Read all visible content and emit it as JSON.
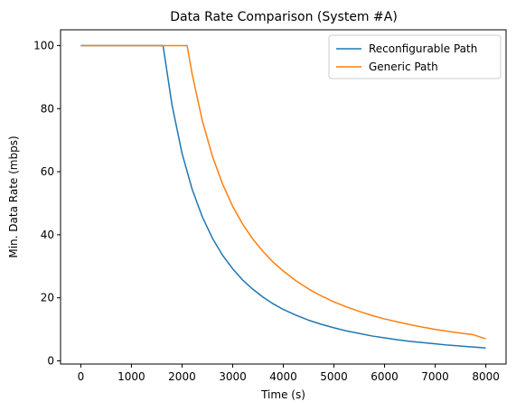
{
  "chart_data": {
    "type": "line",
    "title": "Data Rate Comparison (System #A)",
    "xlabel": "Time (s)",
    "ylabel": "Min. Data Rate (mbps)",
    "xlim": [
      -400,
      8400
    ],
    "ylim": [
      -1,
      105
    ],
    "xticks": [
      0,
      1000,
      2000,
      3000,
      4000,
      5000,
      6000,
      7000,
      8000
    ],
    "yticks": [
      0,
      20,
      40,
      60,
      80,
      100
    ],
    "grid": false,
    "legend_position": "top-right",
    "series": [
      {
        "name": "Reconfigurable Path",
        "color": "#1f77b4",
        "x": [
          0,
          1625,
          1800,
          2000,
          2200,
          2400,
          2600,
          2800,
          3000,
          3200,
          3400,
          3600,
          3800,
          4000,
          4250,
          4500,
          4750,
          5000,
          5250,
          5500,
          5750,
          6000,
          6250,
          6500,
          6750,
          7000,
          7250,
          7500,
          7750,
          8000
        ],
        "y": [
          100,
          100,
          81.3,
          65.8,
          54.4,
          45.7,
          38.9,
          33.5,
          29.2,
          25.6,
          22.7,
          20.2,
          18.1,
          16.3,
          14.5,
          12.9,
          11.6,
          10.5,
          9.5,
          8.7,
          7.9,
          7.3,
          6.7,
          6.2,
          5.8,
          5.4,
          5.0,
          4.7,
          4.4,
          4.1
        ]
      },
      {
        "name": "Generic Path",
        "color": "#ff7f0e",
        "x": [
          0,
          2100,
          2200,
          2400,
          2600,
          2800,
          3000,
          3200,
          3400,
          3600,
          3800,
          4000,
          4250,
          4500,
          4750,
          5000,
          5250,
          5500,
          5750,
          6000,
          6250,
          6500,
          6750,
          7000,
          7250,
          7500,
          7750,
          8000
        ],
        "y": [
          100,
          100,
          90.9,
          76.2,
          64.9,
          56.1,
          49.0,
          43.3,
          38.6,
          34.7,
          31.3,
          28.5,
          25.4,
          22.8,
          20.6,
          18.7,
          17.1,
          15.7,
          14.4,
          13.3,
          12.4,
          11.5,
          10.7,
          10.0,
          9.4,
          8.8,
          8.3,
          7.0
        ]
      }
    ]
  }
}
